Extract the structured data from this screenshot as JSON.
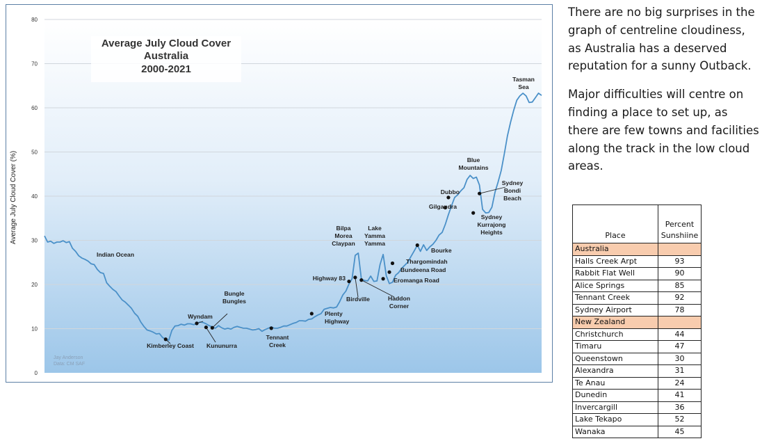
{
  "chart_data": {
    "type": "line",
    "title": [
      "Average July Cloud Cover",
      "Australia",
      "2000-2021"
    ],
    "ylabel": "Average July Cloud Cover (%)",
    "xlabel": "",
    "ylim": [
      0,
      80
    ],
    "yticks": [
      "0",
      "10",
      "20",
      "30",
      "40",
      "50",
      "60",
      "70",
      "80"
    ],
    "grid": true,
    "credit": [
      "Jay Anderson",
      "Data: CM SAF"
    ],
    "line_color": "#4a90c8",
    "series": [
      {
        "values": [
          31,
          29.6,
          29.8,
          29.3,
          29.6,
          29.6,
          29.9,
          29.5,
          29.7,
          28.2,
          27.5,
          26.5,
          26,
          25.7,
          25.3,
          24.7,
          24.5,
          23.4,
          22.7,
          22.5,
          20.4,
          19.6,
          18.9,
          18.4,
          17.4,
          16.5,
          16,
          15.3,
          14.6,
          13.5,
          12.8,
          11.5,
          10.5,
          9.7,
          9.5,
          9.2,
          8.8,
          8.9,
          8,
          7.6,
          7.4,
          9.6,
          10.6,
          10.7,
          11,
          10.8,
          11.1,
          11.1,
          10.9,
          11.1,
          11.5,
          11.4,
          11.1,
          10.7,
          10.4,
          10.1,
          10.7,
          10.2,
          9.9,
          10.1,
          9.9,
          10.3,
          10.5,
          10.3,
          10.1,
          10.1,
          9.9,
          9.7,
          9.8,
          10,
          9.4,
          9.8,
          10.1,
          10.4,
          10.1,
          10.1,
          10.3,
          10.6,
          10.6,
          10.9,
          11.2,
          11.4,
          11.8,
          11.8,
          11.7,
          12.1,
          12.2,
          12.7,
          13.1,
          13.4,
          14.4,
          14.6,
          14.8,
          14.7,
          14.9,
          16.1,
          17.6,
          18.5,
          20.1,
          21.3,
          26.6,
          27.1,
          21.2,
          20.9,
          20.8,
          21.9,
          20.7,
          20.8,
          24.5,
          26.8,
          22,
          20.2,
          20.5,
          22.1,
          22.7,
          23.7,
          24.4,
          25.1,
          26.4,
          27.6,
          28.9,
          27.5,
          29,
          27.7,
          28.5,
          29.1,
          30,
          31.2,
          31.8,
          33.6,
          35.8,
          37.8,
          39.7,
          40.3,
          41.2,
          41.9,
          43.8,
          44.7,
          44,
          44.3,
          42.5,
          37,
          36.2,
          36.3,
          37.5,
          40.9,
          43.2,
          45.8,
          49.6,
          53.6,
          56.7,
          59.4,
          61.7,
          62.7,
          63.3,
          62.7,
          61.2,
          61.3,
          62.3,
          63.3,
          62.8
        ]
      }
    ],
    "annotations": [
      {
        "label": [
          "Indian Ocean"
        ],
        "x": 8,
        "y": 28,
        "marker": false
      },
      {
        "label": [
          "Kimberley Coast"
        ],
        "x": 39,
        "y": 7.6,
        "marker": true
      },
      {
        "label": [
          "Wyndam"
        ],
        "x": 49,
        "y": 11.2,
        "marker": true
      },
      {
        "label": [
          "Kununurra"
        ],
        "x": 52,
        "y": 10.3,
        "marker": true
      },
      {
        "label": [
          "Bungle",
          "Bungles"
        ],
        "x": 54,
        "y": 10.2,
        "marker": true
      },
      {
        "label": [
          "Tennant",
          "Creek"
        ],
        "x": 73,
        "y": 10.1,
        "marker": true
      },
      {
        "label": [
          "Plenty",
          "Highway"
        ],
        "x": 86,
        "y": 13.4,
        "marker": true
      },
      {
        "label": [
          "Highway 83"
        ],
        "x": 98,
        "y": 20.7,
        "marker": true
      },
      {
        "label": [
          "Bilpa",
          "Morea",
          "Claypan"
        ],
        "x": 100,
        "y": 26.6,
        "marker": false
      },
      {
        "label": [
          "Birdville"
        ],
        "x": 100,
        "y": 21.6,
        "marker": true
      },
      {
        "label": [
          "Lake",
          "Yamma",
          "Yamma"
        ],
        "x": 105,
        "y": 26.8,
        "marker": false
      },
      {
        "label": [
          "Haddon",
          "Corner"
        ],
        "x": 102,
        "y": 21,
        "marker": true
      },
      {
        "label": [
          "Eromanga Road"
        ],
        "x": 109,
        "y": 21.3,
        "marker": true
      },
      {
        "label": [
          "Bundeena Road"
        ],
        "x": 111,
        "y": 22.8,
        "marker": true
      },
      {
        "label": [
          "Thargomindah"
        ],
        "x": 112,
        "y": 24.8,
        "marker": true
      },
      {
        "label": [
          "Bourke"
        ],
        "x": 120,
        "y": 28.9,
        "marker": true
      },
      {
        "label": [
          "Gilgandra"
        ],
        "x": 129,
        "y": 37.4,
        "marker": true
      },
      {
        "label": [
          "Dubbo"
        ],
        "x": 130,
        "y": 39.7,
        "marker": true
      },
      {
        "label": [
          "Blue",
          "Mountains"
        ],
        "x": 135,
        "y": 44.7,
        "marker": false
      },
      {
        "label": [
          "Sydney",
          "Kurrajong",
          "Heights"
        ],
        "x": 138,
        "y": 36.2,
        "marker": true
      },
      {
        "label": [
          "Sydney",
          "Bondi",
          "Beach"
        ],
        "x": 140,
        "y": 40.6,
        "marker": true
      },
      {
        "label": [
          "Tasman",
          "Sea"
        ],
        "x": 151,
        "y": 63.3,
        "marker": false
      }
    ]
  },
  "commentary": {
    "paragraph1": "There are no big surprises in the graph of centreline cloudiness, as Australia has a deserved reputation for a sunny Outback.",
    "paragraph2": "Major difficulties will centre on finding a place to set up, as there are few towns and facilities along the track in the low cloud areas."
  },
  "table": {
    "header_place": "Place",
    "header_value": [
      "Percent",
      "Sunshiine"
    ],
    "group_color": "#f8ccae",
    "groups": [
      {
        "name": "Australia",
        "rows": [
          {
            "place": "Halls Creek Arpt",
            "value": "93"
          },
          {
            "place": "Rabbit Flat Well",
            "value": "90"
          },
          {
            "place": "Alice Springs",
            "value": "85"
          },
          {
            "place": "Tennant Creek",
            "value": "92"
          },
          {
            "place": "Sydney Airport",
            "value": "78"
          }
        ]
      },
      {
        "name": "New Zealand",
        "rows": [
          {
            "place": "Christchurch",
            "value": "44"
          },
          {
            "place": "Timaru",
            "value": "47"
          },
          {
            "place": "Queenstown",
            "value": "30"
          },
          {
            "place": "Alexandra",
            "value": "31"
          },
          {
            "place": "Te Anau",
            "value": "24"
          },
          {
            "place": "Dunedin",
            "value": "41"
          },
          {
            "place": "Invercargill",
            "value": "36"
          },
          {
            "place": "Lake Tekapo",
            "value": "52"
          },
          {
            "place": "Wanaka",
            "value": "45"
          }
        ]
      }
    ]
  }
}
